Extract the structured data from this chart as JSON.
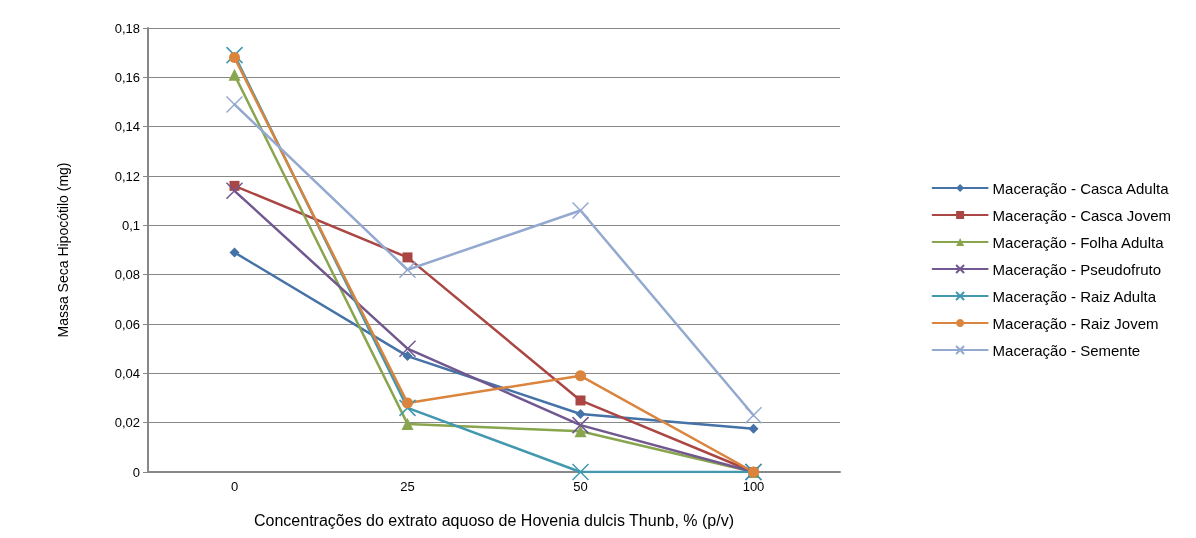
{
  "chart_data": {
    "type": "line",
    "xlabel": "Concentrações do extrato aquoso de Hovenia dulcis Thunb, % (p/v)",
    "ylabel": "Massa Seca Hipocótilo (mg)",
    "categories": [
      "0",
      "25",
      "50",
      "100"
    ],
    "series": [
      {
        "name": "Maceração - Casca Adulta",
        "color": "#4572a7",
        "marker": "diamond",
        "values": [
          0.089,
          0.047,
          0.0235,
          0.0175
        ]
      },
      {
        "name": "Maceração - Casca Jovem",
        "color": "#aa4643",
        "marker": "square",
        "values": [
          0.116,
          0.087,
          0.029,
          0
        ]
      },
      {
        "name": "Maceração - Folha Adulta",
        "color": "#89a54e",
        "marker": "triangle",
        "values": [
          0.161,
          0.0195,
          0.0165,
          0
        ]
      },
      {
        "name": "Maceração - Pseudofruto",
        "color": "#71588f",
        "marker": "cross",
        "values": [
          0.114,
          0.05,
          0.019,
          0
        ]
      },
      {
        "name": "Maceração - Raiz Adulta",
        "color": "#4198af",
        "marker": "cross",
        "values": [
          0.169,
          0.026,
          0,
          0
        ]
      },
      {
        "name": "Maceração - Raiz Jovem",
        "color": "#db843d",
        "marker": "circle",
        "values": [
          0.168,
          0.028,
          0.039,
          0
        ]
      },
      {
        "name": "Maceração - Semente",
        "color": "#93a9cf",
        "marker": "cross",
        "values": [
          0.149,
          0.082,
          0.106,
          0.023
        ]
      }
    ],
    "ylim": [
      0,
      0.18
    ],
    "yticks": [
      {
        "value": 0,
        "label": "0"
      },
      {
        "value": 0.02,
        "label": "0,02"
      },
      {
        "value": 0.04,
        "label": "0,04"
      },
      {
        "value": 0.06,
        "label": "0,06"
      },
      {
        "value": 0.08,
        "label": "0,08"
      },
      {
        "value": 0.1,
        "label": "0,1"
      },
      {
        "value": 0.12,
        "label": "0,12"
      },
      {
        "value": 0.14,
        "label": "0,14"
      },
      {
        "value": 0.16,
        "label": "0,16"
      },
      {
        "value": 0.18,
        "label": "0,18"
      }
    ],
    "grid": "y",
    "legend": "right",
    "line_style": "solid"
  }
}
